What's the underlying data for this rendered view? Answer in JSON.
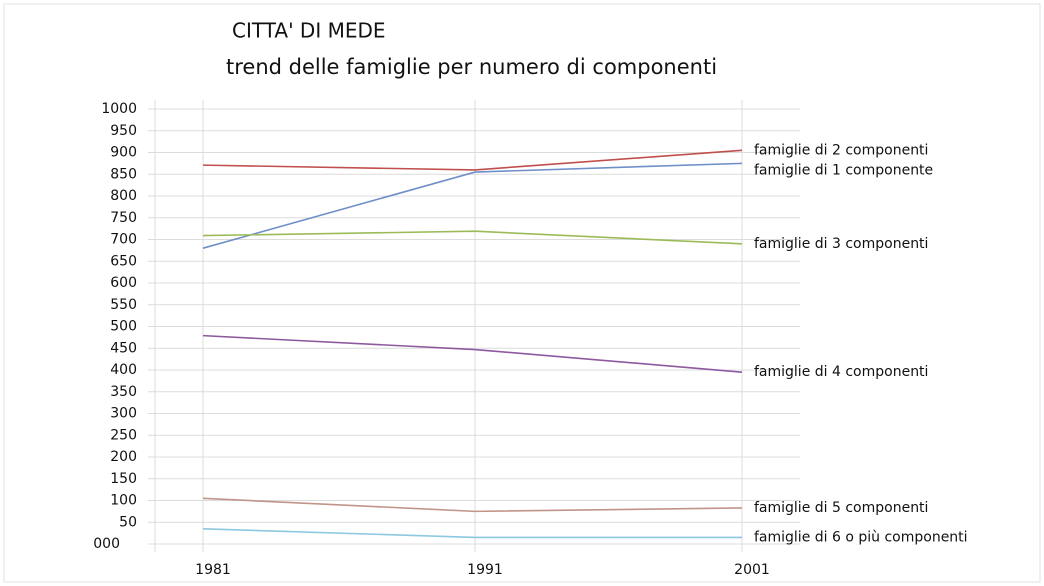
{
  "chart_data": {
    "type": "line",
    "title": "CITTA' DI MEDE",
    "subtitle": "trend delle famiglie per numero di componenti",
    "categories": [
      "1981",
      "1991",
      "2001"
    ],
    "series": [
      {
        "name": "famiglie di 2 componenti",
        "color": "#c0504d",
        "values": [
          871,
          860,
          905
        ]
      },
      {
        "name": "famiglie di 1 componente",
        "color": "#6f8fc8",
        "values": [
          680,
          855,
          875
        ]
      },
      {
        "name": "famiglie di 3 componenti",
        "color": "#9bbb59",
        "values": [
          709,
          719,
          690
        ]
      },
      {
        "name": "famiglie di 4 componenti",
        "color": "#8e5a9e",
        "values": [
          479,
          447,
          395
        ]
      },
      {
        "name": "famiglie di 5 componenti",
        "color": "#c09488",
        "values": [
          105,
          75,
          83
        ]
      },
      {
        "name": "famiglie di 6 o più componenti",
        "color": "#8cc8e0",
        "values": [
          35,
          15,
          15
        ]
      }
    ],
    "ylim": [
      0,
      1000
    ],
    "yticks": [
      {
        "value": 0,
        "label": "000"
      },
      50,
      100,
      150,
      200,
      250,
      300,
      350,
      400,
      450,
      500,
      550,
      600,
      650,
      700,
      750,
      800,
      850,
      900,
      950,
      1000
    ],
    "grid": true
  }
}
